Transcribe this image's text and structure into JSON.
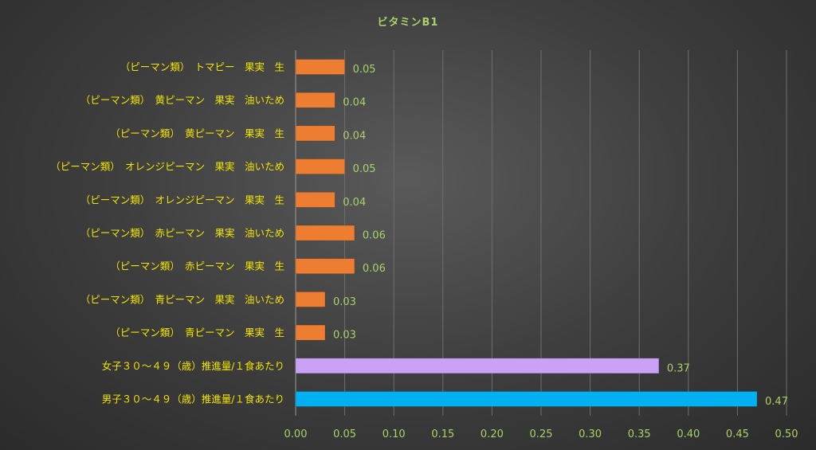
{
  "chart_data": {
    "type": "bar",
    "orientation": "horizontal",
    "title": "ビタミンB1",
    "categories": [
      "（ピーマン類）　トマピー　果実　生",
      "（ピーマン類）　黄ピーマン　果実　油いため",
      "（ピーマン類）　黄ピーマン　果実　生",
      "（ピーマン類）　オレンジピーマン　果実　油いため",
      "（ピーマン類）　オレンジピーマン　果実　生",
      "（ピーマン類）　赤ピーマン　果実　油いため",
      "（ピーマン類）　赤ピーマン　果実　生",
      "（ピーマン類）　青ピーマン　果実　油いため",
      "（ピーマン類）　青ピーマン　果実　生",
      "女子３０～４９（歳）推進量/１食あたり",
      "男子３０～４９（歳）推進量/１食あたり"
    ],
    "values": [
      0.05,
      0.04,
      0.04,
      0.05,
      0.04,
      0.06,
      0.06,
      0.03,
      0.03,
      0.37,
      0.47
    ],
    "value_labels": [
      "0.05",
      "0.04",
      "0.04",
      "0.05",
      "0.04",
      "0.06",
      "0.06",
      "0.03",
      "0.03",
      "0.37",
      "0.47"
    ],
    "bar_colors": [
      "#ed7d31",
      "#ed7d31",
      "#ed7d31",
      "#ed7d31",
      "#ed7d31",
      "#ed7d31",
      "#ed7d31",
      "#ed7d31",
      "#ed7d31",
      "#c9a2f5",
      "#00b0f0"
    ],
    "xlim": [
      0,
      0.5
    ],
    "x_ticks": [
      "0.00",
      "0.05",
      "0.10",
      "0.15",
      "0.20",
      "0.25",
      "0.30",
      "0.35",
      "0.40",
      "0.45",
      "0.50"
    ],
    "xlabel": "",
    "ylabel": "",
    "grid": true,
    "legend": "none",
    "colors": {
      "background": "#3c3c3c",
      "gridline": "#6e6e6e",
      "category_text": "#f2e400",
      "value_text": "#a9d26a",
      "title_text": "#a9d26a"
    }
  }
}
